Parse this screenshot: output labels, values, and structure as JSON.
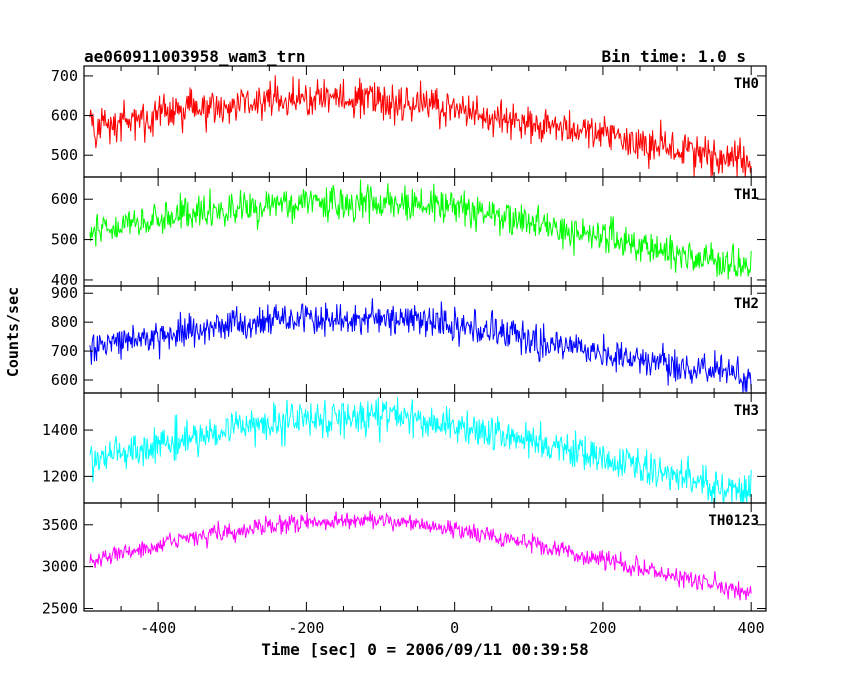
{
  "header": {
    "title": "ae060911003958_wam3_trn",
    "bin_time": "Bin time: 1.0 s"
  },
  "chart_data": {
    "type": "line",
    "title": "ae060911003958_wam3_trn",
    "xlabel": "Time [sec] 0 = 2006/09/11 00:39:58",
    "ylabel": "Counts/sec",
    "xlim": [
      -500,
      420
    ],
    "x_ticks": [
      -400,
      -200,
      0,
      200,
      400
    ],
    "x_tick_labels": [
      "-400",
      "-200",
      "0",
      "200",
      "400"
    ],
    "x_sampled": [
      -500,
      -450,
      -400,
      -350,
      -300,
      -250,
      -200,
      -150,
      -100,
      -50,
      0,
      50,
      100,
      150,
      200,
      250,
      300,
      350,
      400
    ],
    "bin_time_s": 1.0,
    "panels": [
      {
        "name": "TH0",
        "color": "#ff0000",
        "ylim": [
          445,
          725
        ],
        "y_ticks": [
          500,
          600,
          700
        ],
        "y_tick_labels": [
          "500",
          "600",
          "700"
        ],
        "trend": [
          570,
          585,
          600,
          615,
          630,
          640,
          645,
          645,
          640,
          630,
          615,
          600,
          585,
          570,
          555,
          535,
          515,
          495,
          480
        ],
        "noise": 35
      },
      {
        "name": "TH1",
        "color": "#00ff00",
        "ylim": [
          385,
          655
        ],
        "y_ticks": [
          400,
          500,
          600
        ],
        "y_tick_labels": [
          "400",
          "500",
          "600"
        ],
        "trend": [
          520,
          535,
          550,
          565,
          575,
          585,
          590,
          590,
          590,
          585,
          575,
          560,
          540,
          520,
          500,
          480,
          460,
          445,
          430
        ],
        "noise": 32
      },
      {
        "name": "TH2",
        "color": "#0000ff",
        "ylim": [
          555,
          925
        ],
        "y_ticks": [
          600,
          700,
          800,
          900
        ],
        "y_tick_labels": [
          "600",
          "700",
          "800",
          "900"
        ],
        "trend": [
          715,
          730,
          750,
          770,
          785,
          800,
          810,
          815,
          815,
          805,
          790,
          770,
          745,
          715,
          690,
          670,
          650,
          630,
          610
        ],
        "noise": 40
      },
      {
        "name": "TH3",
        "color": "#00ffff",
        "ylim": [
          1085,
          1560
        ],
        "y_ticks": [
          1200,
          1400
        ],
        "y_tick_labels": [
          "1200",
          "1400"
        ],
        "trend": [
          1270,
          1300,
          1330,
          1365,
          1400,
          1430,
          1450,
          1460,
          1460,
          1450,
          1425,
          1395,
          1360,
          1320,
          1280,
          1240,
          1200,
          1160,
          1130
        ],
        "noise": 55
      },
      {
        "name": "TH0123",
        "color": "#ff00ff",
        "ylim": [
          2470,
          3760
        ],
        "y_ticks": [
          2500,
          3000,
          3500
        ],
        "y_tick_labels": [
          "2500",
          "3000",
          "3500"
        ],
        "trend": [
          3050,
          3150,
          3250,
          3350,
          3420,
          3480,
          3530,
          3560,
          3560,
          3520,
          3450,
          3370,
          3280,
          3180,
          3080,
          2980,
          2880,
          2780,
          2680
        ],
        "noise": 80
      }
    ],
    "grid": false,
    "legend": "none"
  }
}
